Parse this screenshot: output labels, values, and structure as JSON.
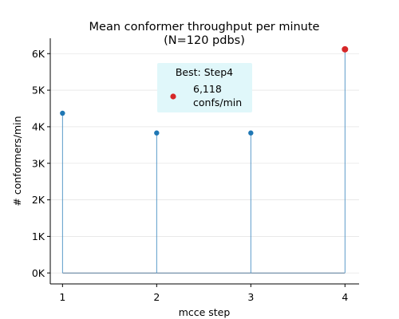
{
  "chart_data": {
    "type": "stem",
    "title_lines": [
      "Mean conformer throughput per minute",
      "(N=120 pdbs)"
    ],
    "xlabel": "mcce step",
    "ylabel": "# conformers/min",
    "x": [
      1,
      2,
      3,
      4
    ],
    "values": [
      4370,
      3830,
      3830,
      6118
    ],
    "xticks": [
      "1",
      "2",
      "3",
      "4"
    ],
    "yticks": [
      0,
      1000,
      2000,
      3000,
      4000,
      5000,
      6000
    ],
    "ytick_labels": [
      "0K",
      "1K",
      "2K",
      "3K",
      "4K",
      "5K",
      "6K"
    ],
    "xlim": [
      0.87,
      4.15
    ],
    "ylim": [
      -300,
      6420
    ],
    "grid": "horizontal",
    "legend": {
      "title": "Best: Step4",
      "label_lines": [
        "6,118",
        "confs/min"
      ],
      "placement": "upper-center"
    },
    "colors": {
      "stem": "#4a90c4",
      "marker": "#1f77b4",
      "highlight": "#d62728",
      "legend_bg": "#e0f7fa",
      "grid": "#e6e6e6"
    },
    "highlight_index": 3
  }
}
